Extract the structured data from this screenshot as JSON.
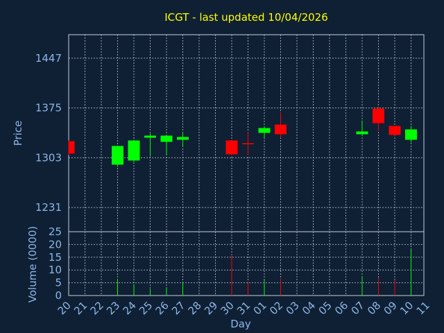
{
  "chart_data": {
    "type": "candlestick",
    "title": "ICGT - last updated 10/04/2026",
    "xlabel": "Day",
    "ylabel_price": "Price",
    "ylabel_volume": "Volume (0000)",
    "price_ticks": [
      1231,
      1303,
      1375,
      1447
    ],
    "price_ylim": [
      1196,
      1481
    ],
    "volume_ticks": [
      0,
      5,
      10,
      15,
      20,
      25
    ],
    "volume_ylim": [
      0,
      25
    ],
    "x_labels": [
      "20",
      "21",
      "22",
      "23",
      "24",
      "25",
      "26",
      "27",
      "28",
      "29",
      "30",
      "31",
      "01",
      "02",
      "03",
      "04",
      "05",
      "06",
      "07",
      "08",
      "09",
      "10",
      "11"
    ],
    "grid": true,
    "colors": {
      "up": "#00ff00",
      "down": "#ff0000",
      "background": "#0f2035",
      "title": "#ffff00",
      "axis_text": "#8eb6e6",
      "grid": "#c8d0da"
    },
    "candles": [
      {
        "day": "20",
        "open": 1327,
        "high": 1328,
        "low": 1307,
        "close": 1309
      },
      {
        "day": "23",
        "open": 1293,
        "high": 1320,
        "low": 1290,
        "close": 1320
      },
      {
        "day": "24",
        "open": 1299,
        "high": 1329,
        "low": 1297,
        "close": 1328
      },
      {
        "day": "25",
        "open": 1332,
        "high": 1338,
        "low": 1305,
        "close": 1335
      },
      {
        "day": "26",
        "open": 1326,
        "high": 1336,
        "low": 1307,
        "close": 1335
      },
      {
        "day": "27",
        "open": 1329,
        "high": 1340,
        "low": 1319,
        "close": 1333
      },
      {
        "day": "30",
        "open": 1328,
        "high": 1328,
        "low": 1306,
        "close": 1308
      },
      {
        "day": "31",
        "open": 1324,
        "high": 1340,
        "low": 1306,
        "close": 1323
      },
      {
        "day": "01",
        "open": 1339,
        "high": 1348,
        "low": 1330,
        "close": 1346
      },
      {
        "day": "02",
        "open": 1351,
        "high": 1369,
        "low": 1332,
        "close": 1337
      },
      {
        "day": "07",
        "open": 1337,
        "high": 1357,
        "low": 1335,
        "close": 1341
      },
      {
        "day": "08",
        "open": 1374,
        "high": 1376,
        "low": 1342,
        "close": 1353
      },
      {
        "day": "09",
        "open": 1349,
        "high": 1349,
        "low": 1335,
        "close": 1336
      },
      {
        "day": "10",
        "open": 1329,
        "high": 1349,
        "low": 1325,
        "close": 1344
      }
    ],
    "volume": [
      {
        "day": "20",
        "value": 0,
        "dir": "down"
      },
      {
        "day": "23",
        "value": 6.5,
        "dir": "up"
      },
      {
        "day": "24",
        "value": 4.5,
        "dir": "up"
      },
      {
        "day": "25",
        "value": 2.5,
        "dir": "up"
      },
      {
        "day": "26",
        "value": 3,
        "dir": "up"
      },
      {
        "day": "27",
        "value": 5,
        "dir": "up"
      },
      {
        "day": "30",
        "value": 16,
        "dir": "down"
      },
      {
        "day": "31",
        "value": 5.5,
        "dir": "down"
      },
      {
        "day": "01",
        "value": 6,
        "dir": "up"
      },
      {
        "day": "02",
        "value": 6.5,
        "dir": "down"
      },
      {
        "day": "07",
        "value": 7.5,
        "dir": "up"
      },
      {
        "day": "08",
        "value": 7,
        "dir": "down"
      },
      {
        "day": "09",
        "value": 6,
        "dir": "down"
      },
      {
        "day": "10",
        "value": 18,
        "dir": "up"
      }
    ]
  }
}
